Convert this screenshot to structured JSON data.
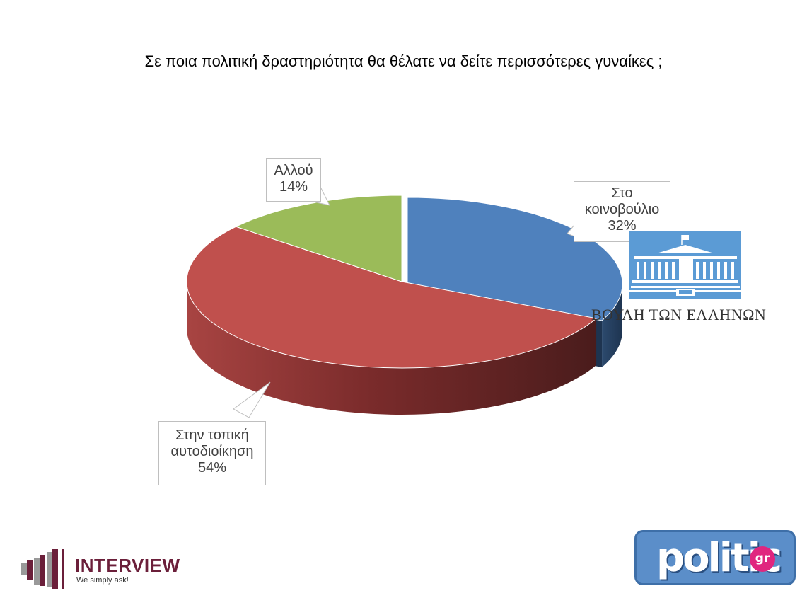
{
  "chart_data": {
    "type": "pie",
    "title": "Σε ποια πολιτική δραστηριότητα θα θέλατε να δείτε περισσότερες γυναίκες ;",
    "slices": [
      {
        "label_lines": [
          "Στο",
          "κοινοβούλιο"
        ],
        "percent_label": "32%",
        "value": 32,
        "color": "#4f81bd"
      },
      {
        "label_lines": [
          "Στην τοπική",
          "αυτοδιοίκηση"
        ],
        "percent_label": "54%",
        "value": 54,
        "color": "#c0504d"
      },
      {
        "label_lines": [
          "Αλλού"
        ],
        "percent_label": "14%",
        "value": 14,
        "color": "#9bbb59"
      }
    ],
    "style": "3d-pie",
    "legend": "none"
  },
  "logos": {
    "parliament_text": "ΒΟΥΛΗ ΤΩΝ ΕΛΛΗΝΩΝ",
    "interview_name": "INTERVIEW",
    "interview_tagline": "We simply ask!",
    "politic_name": "politic",
    "politic_suffix": "gr"
  }
}
